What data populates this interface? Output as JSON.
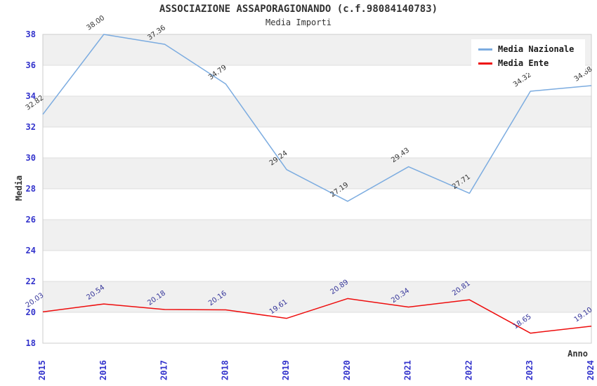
{
  "chart_data": {
    "type": "line",
    "title": "ASSOCIAZIONE ASSAPORAGIONANDO (c.f.98084140783)",
    "subtitle": "Media Importi",
    "xlabel": "Anno",
    "ylabel": "Media",
    "x": [
      "2015",
      "2016",
      "2017",
      "2018",
      "2019",
      "2020",
      "2021",
      "2022",
      "2023",
      "2024"
    ],
    "ylim": [
      18,
      38
    ],
    "ytick_step": 2,
    "grid": "horizontal-bands-alternating",
    "legend_position": "top-right",
    "series": [
      {
        "name": "Media Nazionale",
        "color": "#7CACE0",
        "label_color": "#333333",
        "values": [
          32.82,
          38.0,
          37.36,
          34.79,
          29.24,
          27.19,
          29.43,
          27.71,
          34.32,
          34.68
        ]
      },
      {
        "name": "Media Ente",
        "color": "#EE0D0D",
        "label_color": "#333399",
        "values": [
          20.03,
          20.54,
          20.18,
          20.16,
          19.61,
          20.89,
          20.34,
          20.81,
          18.65,
          19.1
        ]
      }
    ],
    "colors": {
      "tick_label": "#3333CC",
      "axis_text": "#333333",
      "band_gray": "#F0F0F0",
      "gridline": "#DEDEDE",
      "plot_border": "#CCCCCC",
      "background": "#FFFFFF"
    }
  }
}
